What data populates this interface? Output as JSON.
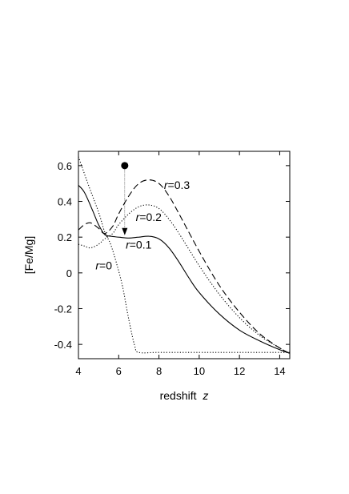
{
  "chart_data": {
    "type": "line",
    "xlabel": "redshift",
    "xlabel_var": "z",
    "ylabel": "[Fe/Mg]",
    "xlim": [
      4,
      14.5
    ],
    "ylim": [
      -0.48,
      0.68
    ],
    "x_ticks": [
      4,
      6,
      8,
      10,
      12,
      14
    ],
    "y_ticks": [
      0.6,
      0.4,
      0.2,
      0,
      -0.2,
      -0.4
    ],
    "x_tick_labels": [
      "4",
      "6",
      "8",
      "10",
      "12",
      "14"
    ],
    "y_tick_labels": [
      "0.6",
      "0.4",
      "0.2",
      "0",
      "-0.2",
      "-0.4"
    ],
    "grid": false,
    "series": [
      {
        "name": "r=0",
        "var": "r",
        "value": "=0",
        "style": "dotted",
        "x": [
          4.0,
          4.5,
          5.0,
          5.3,
          5.6,
          5.9,
          6.2,
          6.5,
          6.8,
          7.0,
          8.0,
          10.0,
          12.0,
          14.5
        ],
        "y": [
          0.65,
          0.49,
          0.34,
          0.23,
          0.16,
          0.05,
          -0.08,
          -0.26,
          -0.41,
          -0.445,
          -0.445,
          -0.445,
          -0.445,
          -0.445
        ]
      },
      {
        "name": "r=0.1",
        "var": "r",
        "value": "=0.1",
        "style": "solid",
        "x": [
          4.0,
          4.3,
          4.7,
          5.0,
          5.3,
          5.6,
          6.0,
          6.5,
          7.0,
          7.5,
          8.0,
          8.5,
          9.0,
          9.5,
          10.0,
          11.0,
          12.0,
          13.0,
          14.0,
          14.5
        ],
        "y": [
          0.49,
          0.45,
          0.35,
          0.27,
          0.215,
          0.205,
          0.2,
          0.195,
          0.2,
          0.205,
          0.19,
          0.14,
          0.06,
          -0.03,
          -0.11,
          -0.23,
          -0.32,
          -0.38,
          -0.43,
          -0.45
        ]
      },
      {
        "name": "r=0.2",
        "var": "r",
        "value": "=0.2",
        "style": "dotted",
        "x": [
          4.0,
          4.3,
          4.6,
          5.0,
          5.3,
          5.7,
          6.0,
          6.5,
          7.0,
          7.5,
          8.0,
          8.5,
          9.0,
          10.0,
          11.0,
          12.0,
          13.0,
          14.0,
          14.5
        ],
        "y": [
          0.16,
          0.15,
          0.14,
          0.16,
          0.19,
          0.22,
          0.27,
          0.33,
          0.37,
          0.38,
          0.36,
          0.3,
          0.22,
          0.04,
          -0.12,
          -0.25,
          -0.35,
          -0.42,
          -0.45
        ]
      },
      {
        "name": "r=0.3",
        "var": "r",
        "value": "=0.3",
        "style": "dashed",
        "x": [
          4.0,
          4.3,
          4.6,
          5.0,
          5.3,
          5.7,
          6.0,
          6.5,
          7.0,
          7.5,
          8.0,
          8.5,
          9.0,
          10.0,
          11.0,
          12.0,
          13.0,
          14.0,
          14.5
        ],
        "y": [
          0.24,
          0.27,
          0.28,
          0.25,
          0.22,
          0.26,
          0.33,
          0.43,
          0.5,
          0.52,
          0.5,
          0.43,
          0.33,
          0.12,
          -0.07,
          -0.22,
          -0.34,
          -0.42,
          -0.45
        ]
      }
    ],
    "curve_label_positions": [
      {
        "series": 0,
        "x": 4.85,
        "y": 0.02
      },
      {
        "series": 1,
        "x": 6.35,
        "y": 0.135
      },
      {
        "series": 2,
        "x": 6.85,
        "y": 0.29
      },
      {
        "series": 3,
        "x": 8.25,
        "y": 0.47
      }
    ],
    "observation": {
      "x": 6.3,
      "y": 0.6,
      "upper_limit_to": 0.22,
      "marker": "filled-circle",
      "arrow": "down"
    }
  }
}
